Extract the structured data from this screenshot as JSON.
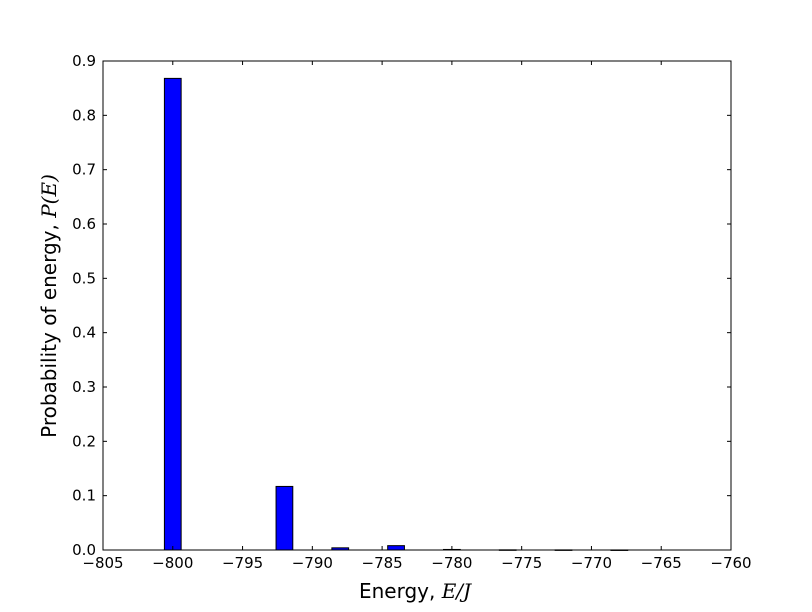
{
  "chart_data": {
    "type": "bar",
    "xlabel_text": "Energy, ",
    "xlabel_math": "E/J",
    "ylabel_text": "Probability of energy, ",
    "ylabel_math": "P(E)",
    "xlim": [
      -805,
      -760
    ],
    "ylim": [
      0,
      0.9
    ],
    "xticks": [
      -805,
      -800,
      -795,
      -790,
      -785,
      -780,
      -775,
      -770,
      -765,
      -760
    ],
    "xtick_labels": [
      "−805",
      "−800",
      "−795",
      "−790",
      "−785",
      "−780",
      "−775",
      "−770",
      "−765",
      "−760"
    ],
    "yticks": [
      0.0,
      0.1,
      0.2,
      0.3,
      0.4,
      0.5,
      0.6,
      0.7,
      0.8,
      0.9
    ],
    "ytick_labels": [
      "0.0",
      "0.1",
      "0.2",
      "0.3",
      "0.4",
      "0.5",
      "0.6",
      "0.7",
      "0.8",
      "0.9"
    ],
    "bar_width": 1.2,
    "bar_color": "#0000ff",
    "edge_color": "#000000",
    "bars": [
      {
        "x": -800,
        "value": 0.868
      },
      {
        "x": -792,
        "value": 0.117
      },
      {
        "x": -788,
        "value": 0.004
      },
      {
        "x": -784,
        "value": 0.008
      },
      {
        "x": -780,
        "value": 0.001
      },
      {
        "x": -776,
        "value": 0.0003
      },
      {
        "x": -772,
        "value": 0.0002
      },
      {
        "x": -768,
        "value": 0.0001
      }
    ],
    "grid": false
  }
}
